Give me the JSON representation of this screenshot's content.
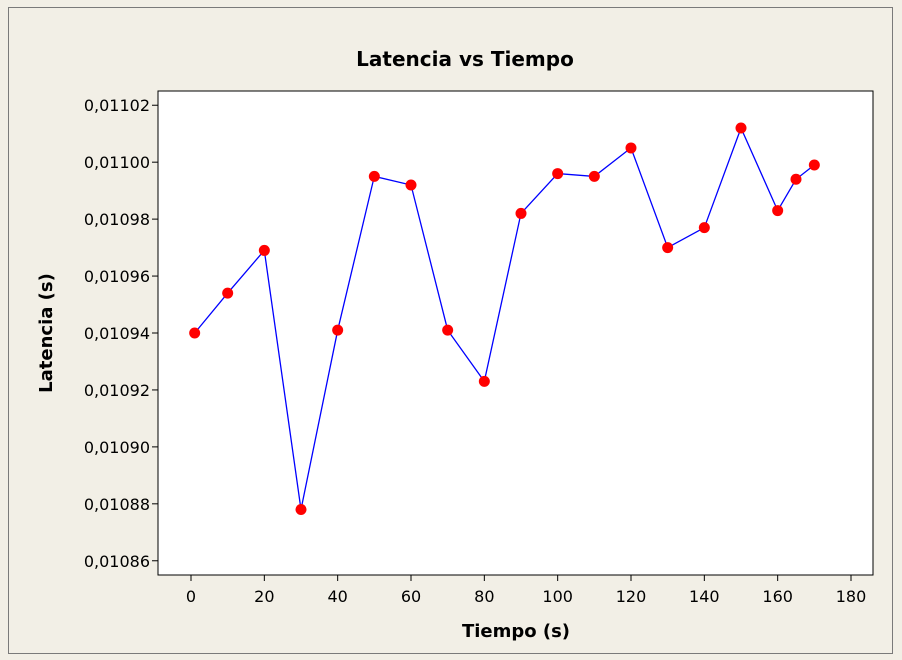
{
  "chart_data": {
    "type": "line",
    "title": "Latencia vs Tiempo",
    "xlabel": "Tiempo (s)",
    "ylabel": "Latencia (s)",
    "xlim": [
      -9,
      186
    ],
    "ylim": [
      0.010855,
      0.011025
    ],
    "xticks": [
      0,
      20,
      40,
      60,
      80,
      100,
      120,
      140,
      160,
      180
    ],
    "xtick_labels": [
      "0",
      "20",
      "40",
      "60",
      "80",
      "100",
      "120",
      "140",
      "160",
      "180"
    ],
    "yticks": [
      0.01086,
      0.01088,
      0.0109,
      0.01092,
      0.01094,
      0.01096,
      0.01098,
      0.011,
      0.01102
    ],
    "ytick_labels": [
      "0,01086",
      "0,01088",
      "0,01090",
      "0,01092",
      "0,01094",
      "0,01096",
      "0,01098",
      "0,01100",
      "0,01102"
    ],
    "grid": false,
    "legend": "none",
    "series": [
      {
        "x": [
          1,
          10,
          20,
          30,
          40,
          50,
          60,
          70,
          80,
          90,
          100,
          110,
          120,
          130,
          140,
          150,
          160,
          165,
          170
        ],
        "y": [
          0.01094,
          0.010954,
          0.010969,
          0.010878,
          0.010941,
          0.010995,
          0.010992,
          0.010941,
          0.010923,
          0.010982,
          0.010996,
          0.010995,
          0.011005,
          0.01097,
          0.010977,
          0.011012,
          0.010983,
          0.010994,
          0.010999
        ],
        "line_color": "#0000ff",
        "marker_color": "#ff0000"
      }
    ]
  },
  "colors": {
    "frame_background": "#f2efe6",
    "plot_background": "#ffffff",
    "line": "#0000ff",
    "marker": "#ff0000"
  }
}
